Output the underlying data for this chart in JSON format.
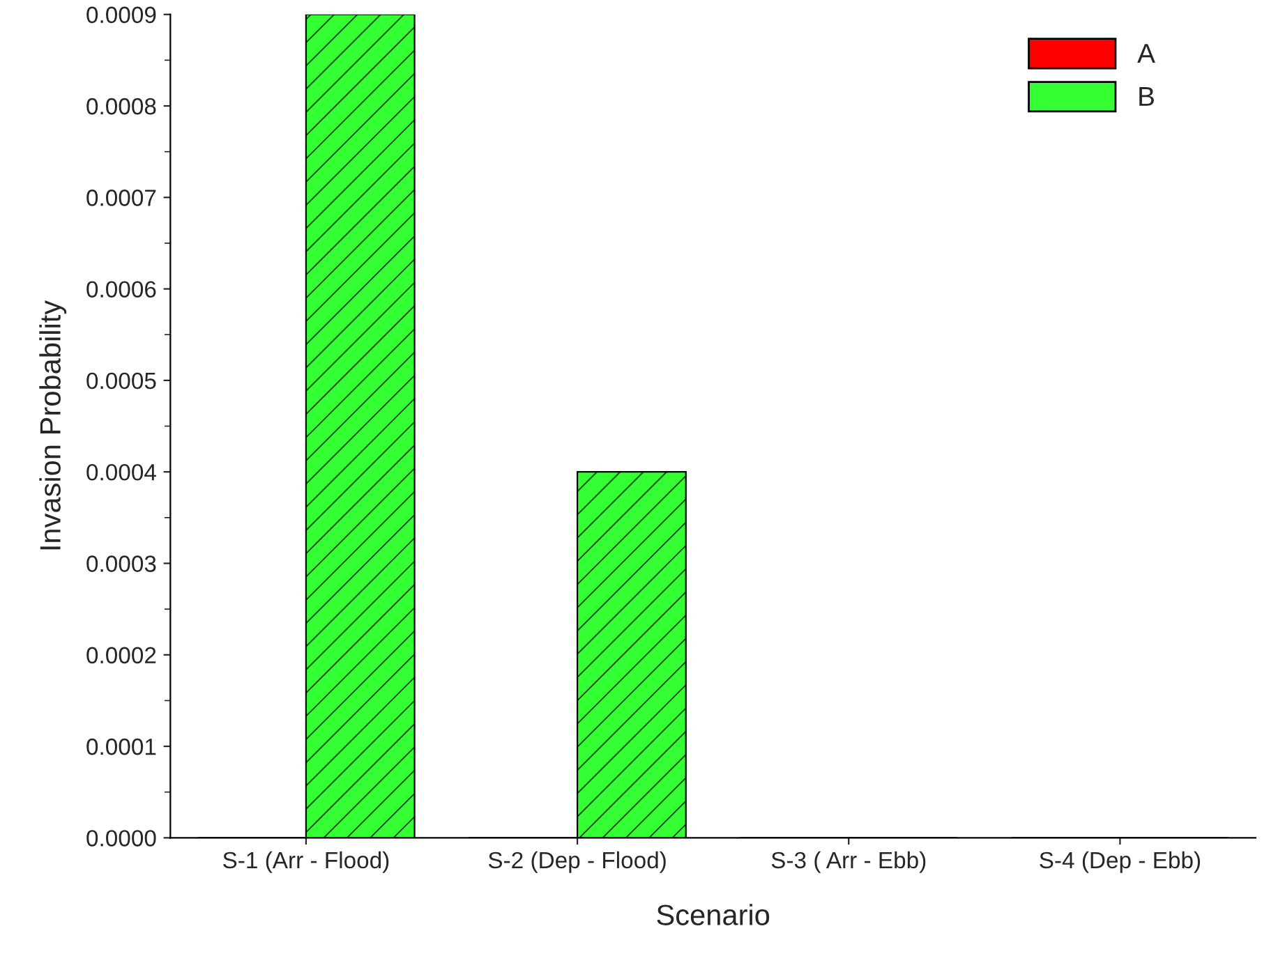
{
  "chart_data": {
    "type": "bar",
    "xlabel": "Scenario",
    "ylabel": "Invasion Probability",
    "categories": [
      "S-1 (Arr - Flood)",
      "S-2 (Dep - Flood)",
      "S-3 ( Arr - Ebb)",
      "S-4 (Dep - Ebb)"
    ],
    "series": [
      {
        "name": "A",
        "color": "#ff0000",
        "values": [
          0,
          0,
          0,
          0
        ]
      },
      {
        "name": "B",
        "color": "#33ff33",
        "values": [
          0.0009,
          0.0004,
          0,
          0
        ]
      }
    ],
    "ylim": [
      0,
      0.0009
    ],
    "yticks": [
      {
        "value": 0,
        "label": "0.0000"
      },
      {
        "value": 0.0001,
        "label": "0.0001"
      },
      {
        "value": 0.0002,
        "label": "0.0002"
      },
      {
        "value": 0.0003,
        "label": "0.0003"
      },
      {
        "value": 0.0004,
        "label": "0.0004"
      },
      {
        "value": 0.0005,
        "label": "0.0005"
      },
      {
        "value": 0.0006,
        "label": "0.0006"
      },
      {
        "value": 0.0007,
        "label": "0.0007"
      },
      {
        "value": 0.0008,
        "label": "0.0008"
      },
      {
        "value": 0.0009,
        "label": "0.0009"
      }
    ],
    "legend": "top right",
    "grid": false
  }
}
